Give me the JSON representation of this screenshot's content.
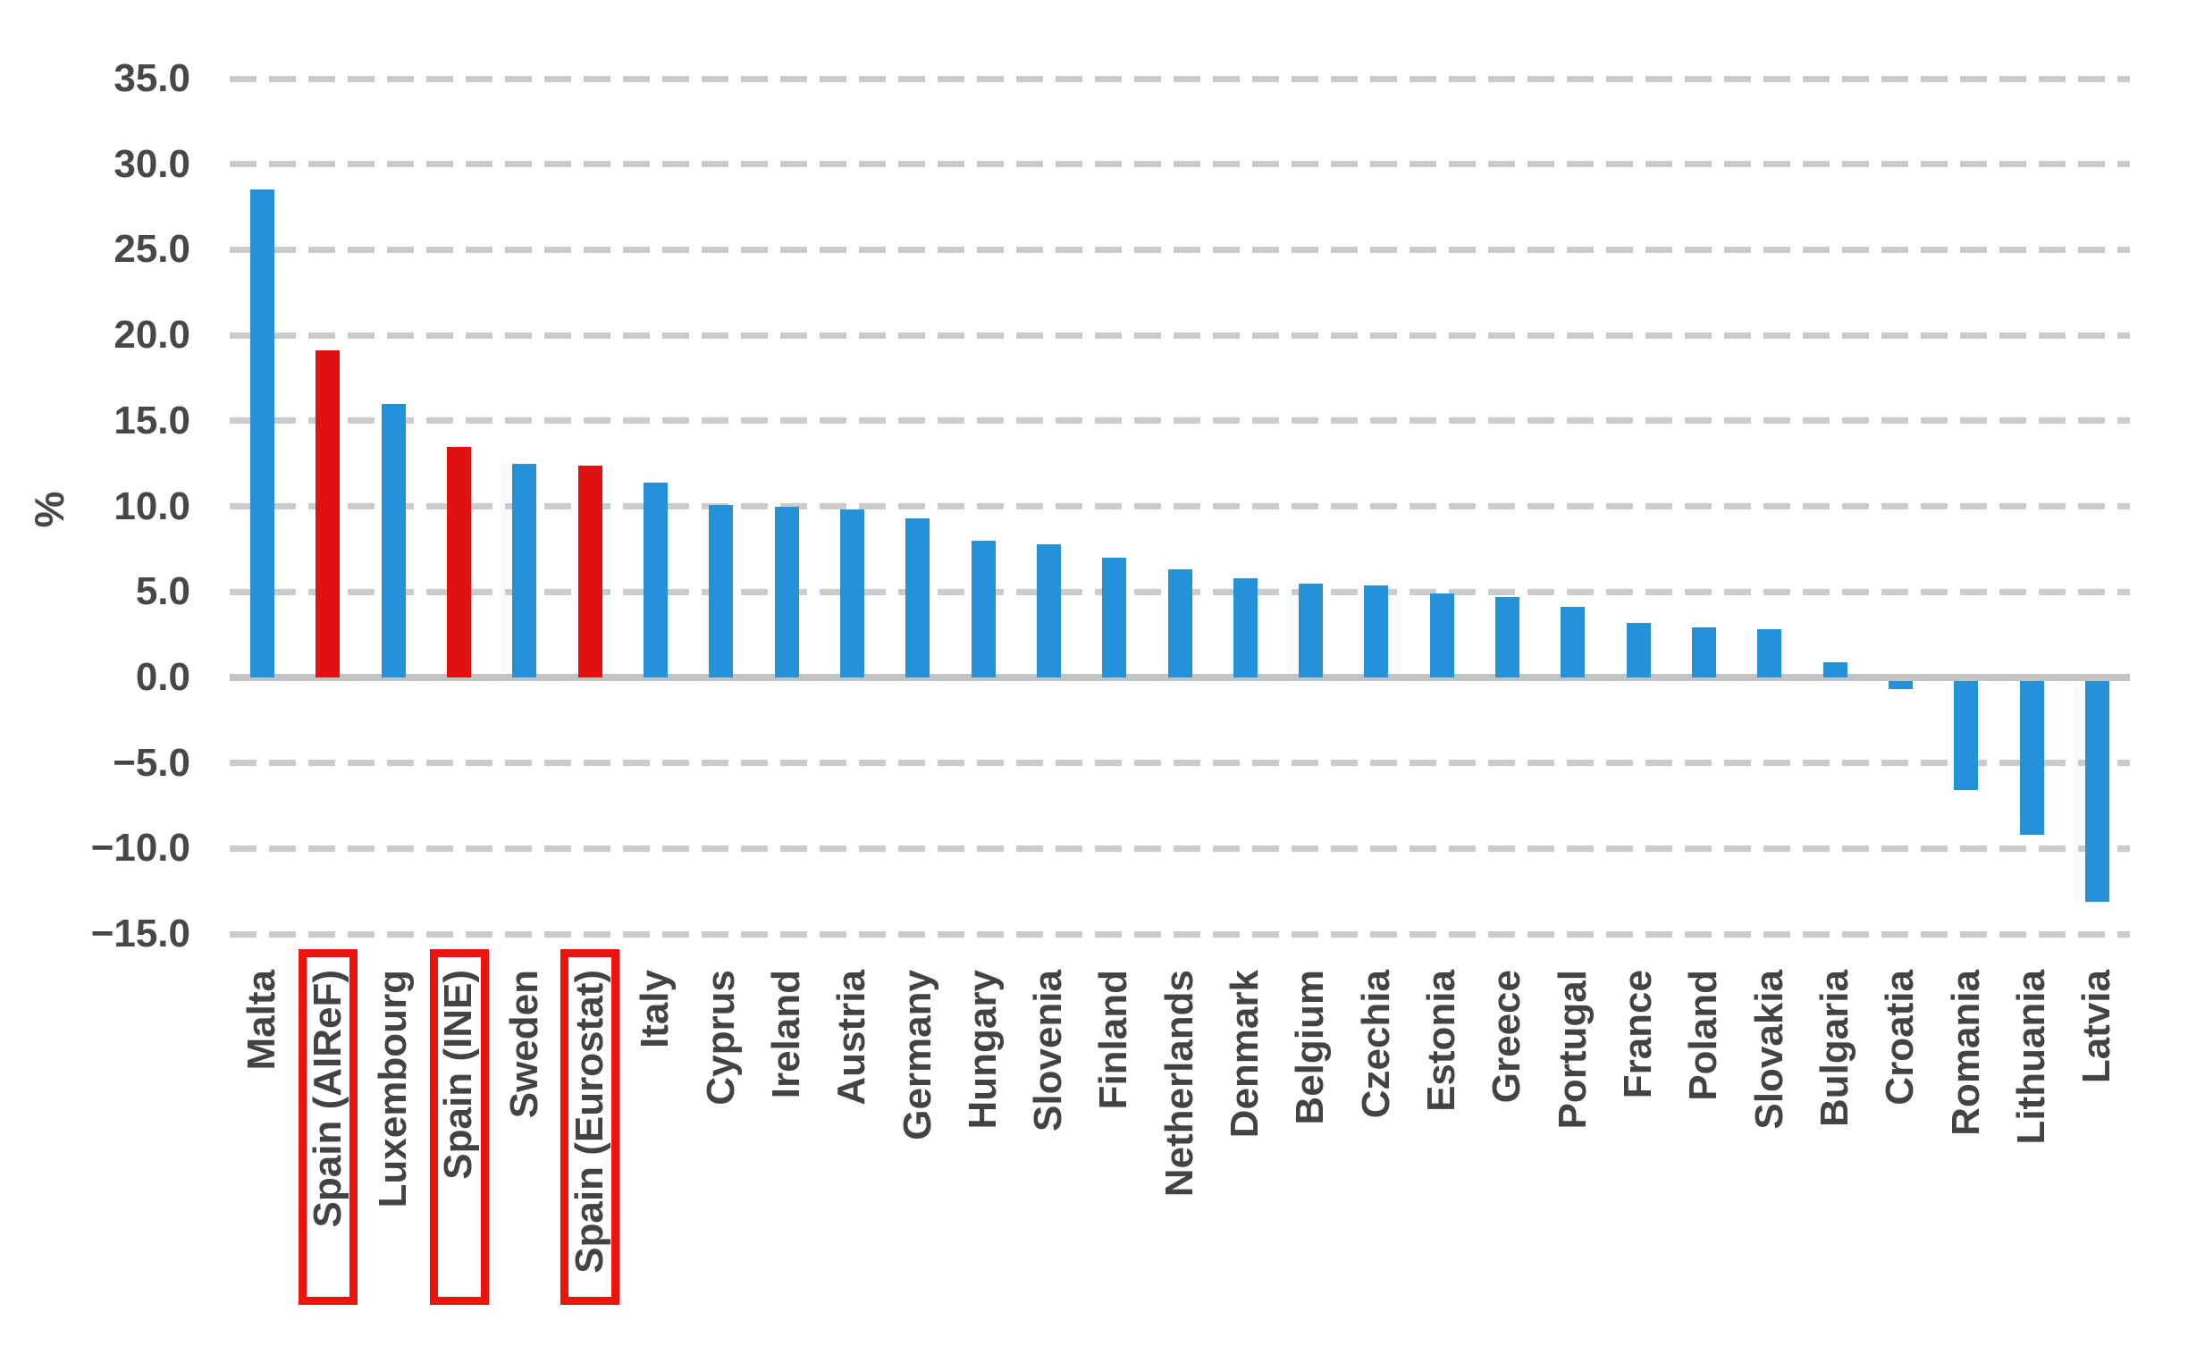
{
  "chart_data": {
    "type": "bar",
    "title": "",
    "xlabel": "",
    "ylabel": "%",
    "ylim": [
      -15,
      35
    ],
    "ytick_step": 5,
    "grid": {
      "style": "dashed",
      "color": "#CBCBCB",
      "zero_axis_color": "#C3C3C3"
    },
    "legend_position": "none",
    "yticks": [
      {
        "value": 35,
        "label": "35.0"
      },
      {
        "value": 30,
        "label": "30.0"
      },
      {
        "value": 25,
        "label": "25.0"
      },
      {
        "value": 20,
        "label": "20.0"
      },
      {
        "value": 15,
        "label": "15.0"
      },
      {
        "value": 10,
        "label": "10.0"
      },
      {
        "value": 5,
        "label": "5.0"
      },
      {
        "value": 0,
        "label": "0.0"
      },
      {
        "value": -5,
        "label": "−5.0"
      },
      {
        "value": -10,
        "label": "−10.0"
      },
      {
        "value": -15,
        "label": "−15.0"
      }
    ],
    "series": [
      {
        "label": "Malta",
        "value": 28.5,
        "highlight": false
      },
      {
        "label": "Spain (AIReF)",
        "value": 19.1,
        "highlight": true
      },
      {
        "label": "Luxembourg",
        "value": 16.0,
        "highlight": false
      },
      {
        "label": "Spain (INE)",
        "value": 13.5,
        "highlight": true
      },
      {
        "label": "Sweden",
        "value": 12.5,
        "highlight": false
      },
      {
        "label": "Spain (Eurostat)",
        "value": 12.4,
        "highlight": true
      },
      {
        "label": "Italy",
        "value": 11.4,
        "highlight": false
      },
      {
        "label": "Cyprus",
        "value": 10.1,
        "highlight": false
      },
      {
        "label": "Ireland",
        "value": 10.0,
        "highlight": false
      },
      {
        "label": "Austria",
        "value": 9.8,
        "highlight": false
      },
      {
        "label": "Germany",
        "value": 9.3,
        "highlight": false
      },
      {
        "label": "Hungary",
        "value": 8.0,
        "highlight": false
      },
      {
        "label": "Slovenia",
        "value": 7.8,
        "highlight": false
      },
      {
        "label": "Finland",
        "value": 7.0,
        "highlight": false
      },
      {
        "label": "Netherlands",
        "value": 6.3,
        "highlight": false
      },
      {
        "label": "Denmark",
        "value": 5.8,
        "highlight": false
      },
      {
        "label": "Belgium",
        "value": 5.5,
        "highlight": false
      },
      {
        "label": "Czechia",
        "value": 5.4,
        "highlight": false
      },
      {
        "label": "Estonia",
        "value": 4.9,
        "highlight": false
      },
      {
        "label": "Greece",
        "value": 4.7,
        "highlight": false
      },
      {
        "label": "Portugal",
        "value": 4.1,
        "highlight": false
      },
      {
        "label": "France",
        "value": 3.2,
        "highlight": false
      },
      {
        "label": "Poland",
        "value": 2.9,
        "highlight": false
      },
      {
        "label": "Slovakia",
        "value": 2.8,
        "highlight": false
      },
      {
        "label": "Bulgaria",
        "value": 0.9,
        "highlight": false
      },
      {
        "label": "Croatia",
        "value": -0.5,
        "highlight": false
      },
      {
        "label": "Romania",
        "value": -6.4,
        "highlight": false
      },
      {
        "label": "Lithuania",
        "value": -9.0,
        "highlight": false
      },
      {
        "label": "Latvia",
        "value": -12.9,
        "highlight": false
      }
    ],
    "colors": {
      "bar": "#2491D8",
      "highlight_bar": "#E01111",
      "highlight_box_border": "#EC140D",
      "grid": "#CBCBCB",
      "zero_axis": "#C3C3C3",
      "text": "#474747"
    }
  }
}
